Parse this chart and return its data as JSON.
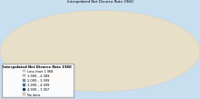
{
  "title": "Interpolated Net Divorce Rate 1960",
  "legend_entries": [
    {
      "label": "Less than 1.968",
      "color": "#dce9f5"
    },
    {
      "label": "1.968 – 2.089",
      "color": "#aac4de"
    },
    {
      "label": "2.089 – 3.999",
      "color": "#6699c0"
    },
    {
      "label": "3.999 – 4.999",
      "color": "#2e6da4"
    },
    {
      "label": "4.999 – 7.957",
      "color": "#0d2d6b"
    },
    {
      "label": "No data",
      "color": "#e8dfc8"
    }
  ],
  "background_color": "#c8dff0",
  "land_default_color": "#e8dfc8",
  "ocean_color": "#c8dff0",
  "border_color": "#ffffff",
  "country_colors": {
    "United States of America": "#0d2d6b",
    "Greenland": "#0d2d6b",
    "Canada": "#2e6da4",
    "Egypt": "#0d2d6b",
    "Russia": "#aac4de",
    "Australia": "#6699c0",
    "United Kingdom": "#aac4de",
    "France": "#aac4de",
    "Germany": "#aac4de",
    "Poland": "#aac4de",
    "Hungary": "#aac4de",
    "Czech Republic": "#aac4de",
    "Czechia": "#aac4de",
    "Denmark": "#2e6da4",
    "Sweden": "#2e6da4",
    "Finland": "#2e6da4",
    "Norway": "#2e6da4",
    "Belgium": "#aac4de",
    "Netherlands": "#aac4de",
    "Switzerland": "#aac4de",
    "Austria": "#aac4de",
    "Latvia": "#2e6da4",
    "Estonia": "#2e6da4",
    "Lithuania": "#aac4de",
    "Belarus": "#2e6da4",
    "Ukraine": "#2e6da4",
    "Kuwait": "#6699c0",
    "Jordan": "#6699c0",
    "Israel": "#2e6da4"
  }
}
